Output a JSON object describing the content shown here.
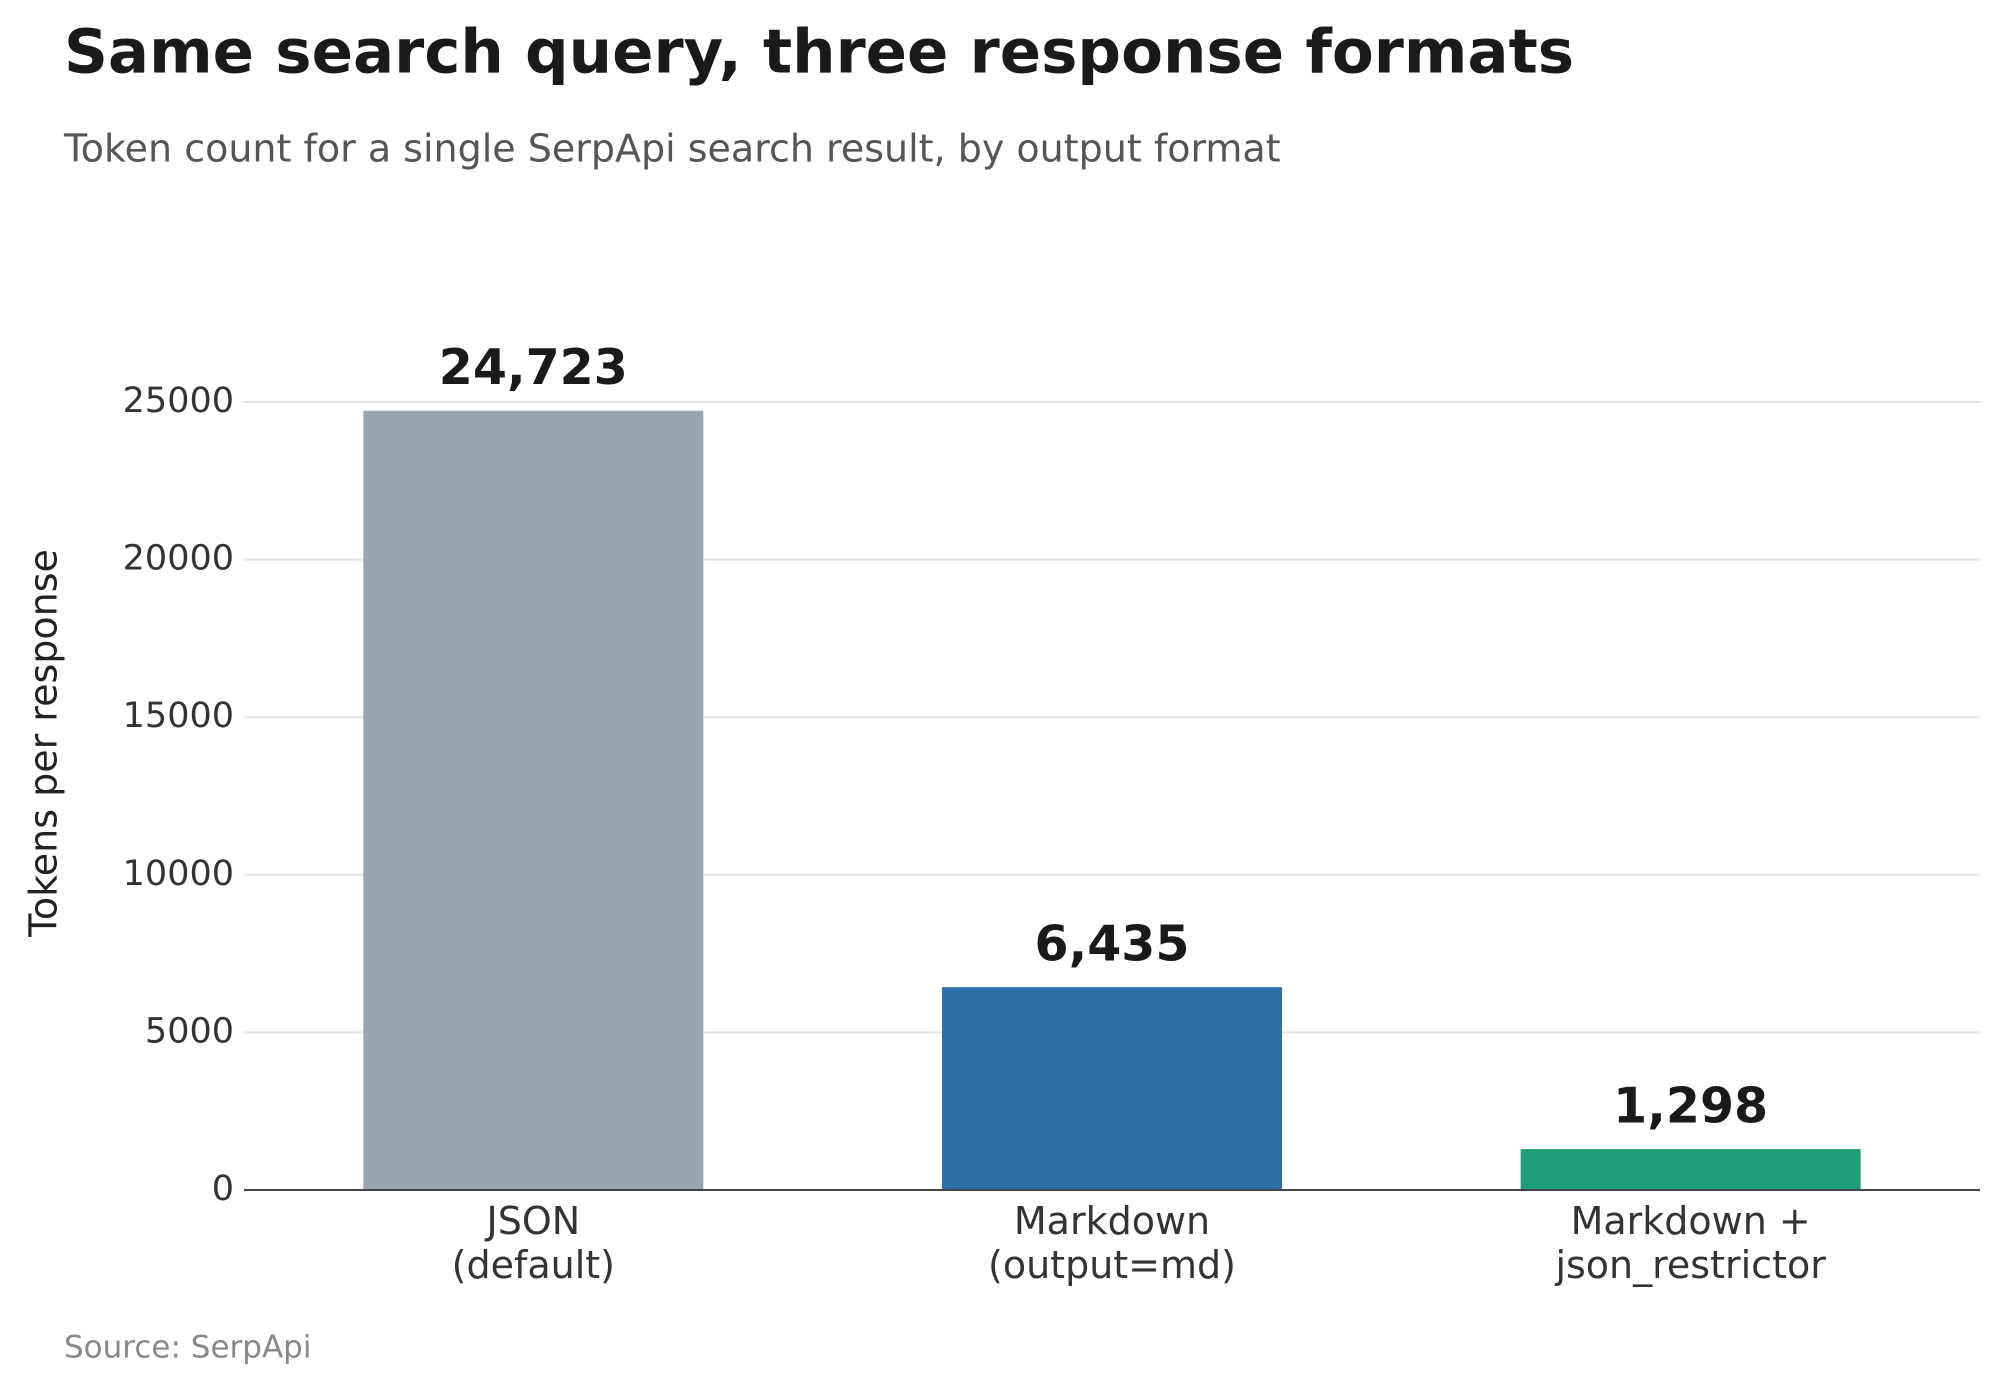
{
  "chart_data": {
    "type": "bar",
    "title": "Same search query, three response formats",
    "subtitle": "Token count for a single SerpApi search result, by output format",
    "y_label": "Tokens per response",
    "source": "Source: SerpApi",
    "categories": [
      [
        "JSON",
        "(default)"
      ],
      [
        "Markdown",
        "(output=md)"
      ],
      [
        "Markdown +",
        "json_restrictor"
      ]
    ],
    "values": [
      24723,
      6435,
      1298
    ],
    "value_labels": [
      "24,723",
      "6,435",
      "1,298"
    ],
    "colors": [
      "#9ba5b1",
      "#2e6fa8",
      "#1f9e77"
    ],
    "ylim": [
      0,
      25000
    ],
    "yticks": [
      0,
      5000,
      10000,
      15000,
      20000,
      25000
    ],
    "grid": true
  }
}
